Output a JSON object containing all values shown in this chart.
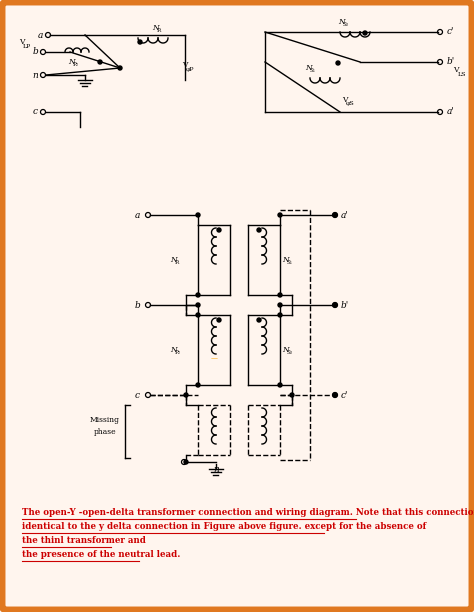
{
  "bg_color": "#fff5ee",
  "border_color": "#e07820",
  "caption_lines": [
    "The open-Y -open-delta transformer connection and wiring diagram. Note that this connection is",
    "identical to the y delta connection in Figure above figure. except for the absence of",
    "the thinl transformer and",
    "the presence of the neutral lead."
  ],
  "caption_color": "#cc0000",
  "fig_width": 4.74,
  "fig_height": 6.12,
  "dpi": 100
}
